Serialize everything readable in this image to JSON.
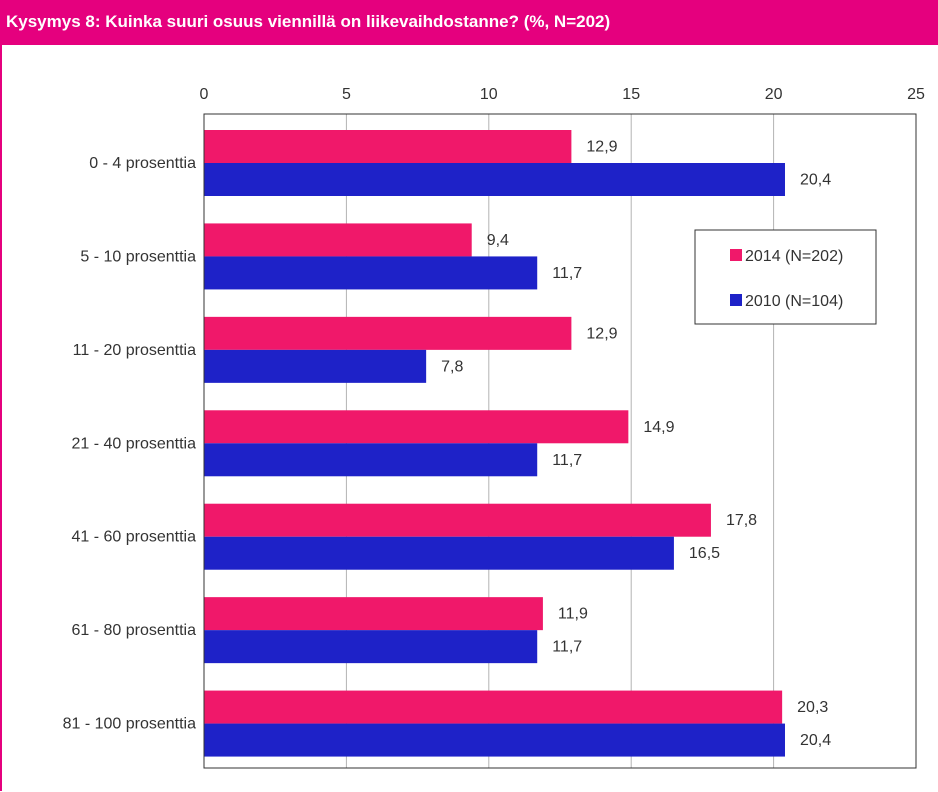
{
  "header": {
    "title": "Kysymys 8: Kuinka suuri osuus viennillä on liikevaihdostanne? (%, N=202)"
  },
  "colors": {
    "accent": "#e5007e",
    "series_2014": "#f0186a",
    "series_2010": "#1e22c8",
    "gridline": "#b3b3b3"
  },
  "chart_data": {
    "type": "bar",
    "orientation": "horizontal",
    "categories": [
      "0 - 4 prosenttia",
      "5 - 10 prosenttia",
      "11 - 20 prosenttia",
      "21 - 40 prosenttia",
      "41 - 60 prosenttia",
      "61 - 80 prosenttia",
      "81 - 100 prosenttia"
    ],
    "series": [
      {
        "name": "2014 (N=202)",
        "values": [
          12.9,
          9.4,
          12.9,
          14.9,
          17.8,
          11.9,
          20.3
        ],
        "labels": [
          "12,9",
          "9,4",
          "12,9",
          "14,9",
          "17,8",
          "11,9",
          "20,3"
        ]
      },
      {
        "name": "2010 (N=104)",
        "values": [
          20.4,
          11.7,
          7.8,
          11.7,
          16.5,
          11.7,
          20.4
        ],
        "labels": [
          "20,4",
          "11,7",
          "7,8",
          "11,7",
          "16,5",
          "11,7",
          "20,4"
        ]
      }
    ],
    "xlim": [
      0,
      25
    ],
    "xticks": [
      "0",
      "5",
      "10",
      "15",
      "20",
      "25"
    ],
    "xtick_values": [
      0,
      5,
      10,
      15,
      20,
      25
    ],
    "grid": true,
    "legend_position": "right"
  }
}
